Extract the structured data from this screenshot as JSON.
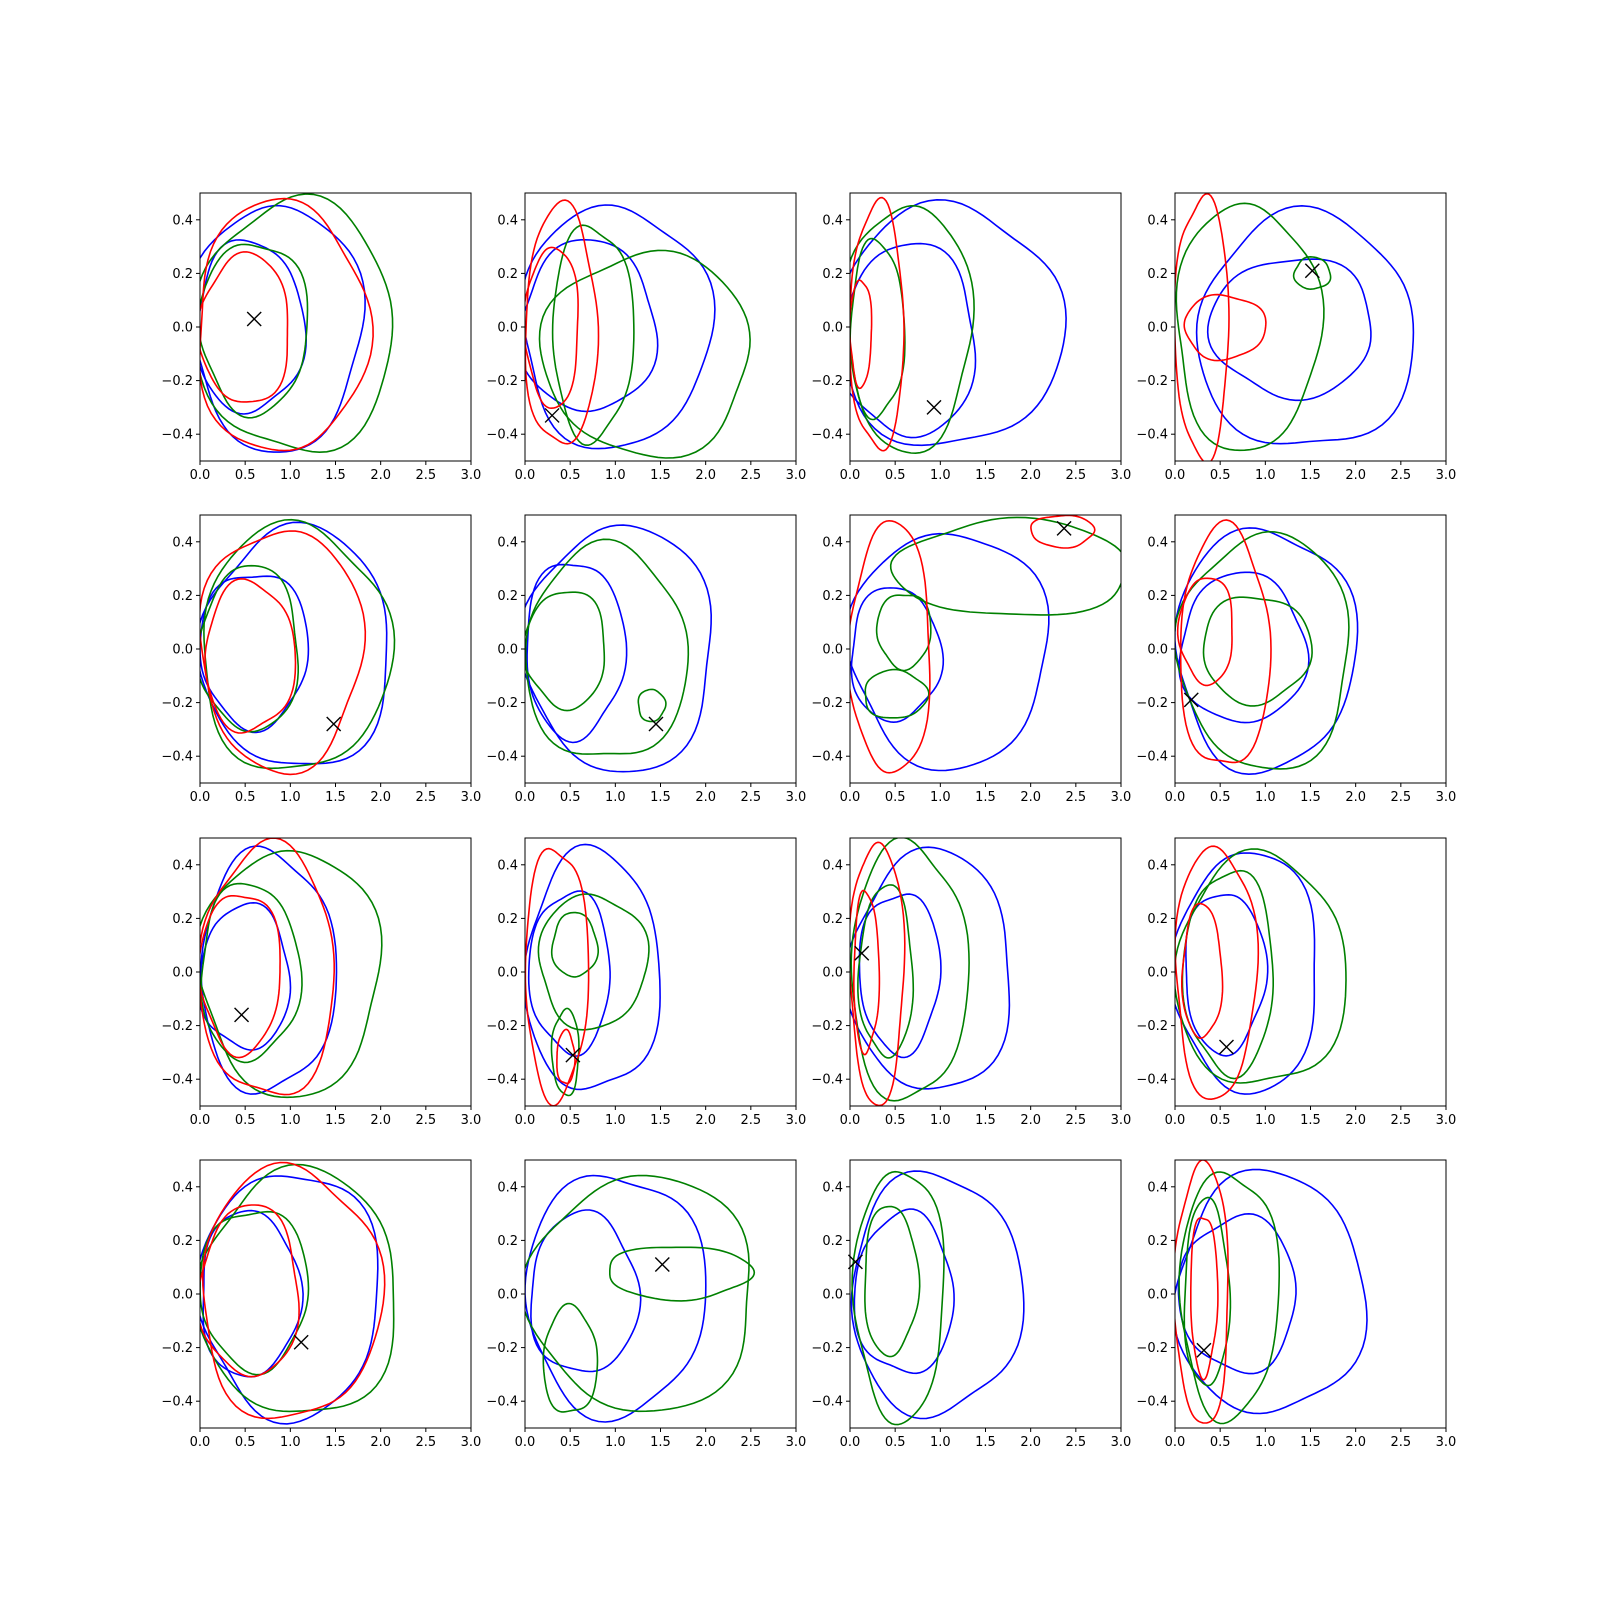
{
  "chart_data": {
    "type": "contour",
    "grid": false,
    "layout": "4x4 small multiples",
    "xlim": [
      0,
      3
    ],
    "ylim": [
      -0.5,
      0.5
    ],
    "xticks": [
      0.0,
      0.5,
      1.0,
      1.5,
      2.0,
      2.5,
      3.0
    ],
    "xtick_labels": [
      "0.0",
      "0.5",
      "1.0",
      "1.5",
      "2.0",
      "2.5",
      "3.0"
    ],
    "yticks": [
      -0.4,
      -0.2,
      0.0,
      0.2,
      0.4
    ],
    "ytick_labels": [
      "−0.4",
      "−0.2",
      "0.0",
      "0.2",
      "0.4"
    ],
    "colors": {
      "blue": "#0000ff",
      "green": "#008000",
      "red": "#ff0000",
      "marker": "#000000"
    },
    "panels": [
      {
        "marker": [
          0.6,
          0.03
        ],
        "contours": [
          {
            "color": "blue",
            "cx": 0.85,
            "cy": 0.0,
            "rx": 0.95,
            "ry": 0.46
          },
          {
            "color": "blue",
            "cx": 0.55,
            "cy": 0.0,
            "rx": 0.6,
            "ry": 0.32
          },
          {
            "color": "green",
            "cx": 1.05,
            "cy": 0.0,
            "rx": 1.1,
            "ry": 0.47
          },
          {
            "color": "green",
            "cx": 0.6,
            "cy": 0.0,
            "rx": 0.6,
            "ry": 0.32
          },
          {
            "color": "red",
            "cx": 0.9,
            "cy": 0.0,
            "rx": 0.95,
            "ry": 0.47
          },
          {
            "color": "red",
            "cx": 0.5,
            "cy": -0.01,
            "rx": 0.5,
            "ry": 0.28
          }
        ]
      },
      {
        "marker": [
          0.3,
          -0.33
        ],
        "contours": [
          {
            "color": "blue",
            "cx": 1.0,
            "cy": 0.0,
            "rx": 1.05,
            "ry": 0.45
          },
          {
            "color": "blue",
            "cx": 0.7,
            "cy": 0.0,
            "rx": 0.75,
            "ry": 0.32
          },
          {
            "color": "green",
            "cx": 1.35,
            "cy": -0.1,
            "rx": 1.15,
            "ry": 0.38
          },
          {
            "color": "green",
            "cx": 0.75,
            "cy": -0.02,
            "rx": 0.45,
            "ry": 0.4
          },
          {
            "color": "red",
            "cx": 0.4,
            "cy": 0.0,
            "rx": 0.4,
            "ry": 0.45
          },
          {
            "color": "red",
            "cx": 0.3,
            "cy": 0.0,
            "rx": 0.3,
            "ry": 0.3
          }
        ]
      },
      {
        "marker": [
          0.93,
          -0.3
        ],
        "contours": [
          {
            "color": "blue",
            "cx": 1.1,
            "cy": 0.0,
            "rx": 1.25,
            "ry": 0.45
          },
          {
            "color": "blue",
            "cx": 0.65,
            "cy": -0.05,
            "rx": 0.75,
            "ry": 0.36
          },
          {
            "color": "green",
            "cx": 0.65,
            "cy": 0.0,
            "rx": 0.7,
            "ry": 0.46
          },
          {
            "color": "green",
            "cx": 0.3,
            "cy": -0.01,
            "rx": 0.3,
            "ry": 0.33
          },
          {
            "color": "red",
            "cx": 0.3,
            "cy": 0.0,
            "rx": 0.3,
            "ry": 0.46
          },
          {
            "color": "red",
            "cx": 0.12,
            "cy": -0.02,
            "rx": 0.12,
            "ry": 0.2
          }
        ]
      },
      {
        "marker": [
          1.52,
          0.21
        ],
        "contours": [
          {
            "color": "blue",
            "cx": 1.45,
            "cy": -0.02,
            "rx": 1.2,
            "ry": 0.44
          },
          {
            "color": "blue",
            "cx": 1.3,
            "cy": 0.0,
            "rx": 0.9,
            "ry": 0.26
          },
          {
            "color": "green",
            "cx": 0.8,
            "cy": 0.0,
            "rx": 0.8,
            "ry": 0.46
          },
          {
            "color": "green",
            "cx": 1.52,
            "cy": 0.2,
            "rx": 0.2,
            "ry": 0.06
          },
          {
            "color": "red",
            "cx": 0.3,
            "cy": 0.0,
            "rx": 0.3,
            "ry": 0.49
          },
          {
            "color": "red",
            "cx": 0.55,
            "cy": 0.0,
            "rx": 0.45,
            "ry": 0.12
          }
        ]
      },
      {
        "marker": [
          1.48,
          -0.28
        ],
        "contours": [
          {
            "color": "blue",
            "cx": 1.07,
            "cy": 0.0,
            "rx": 1.05,
            "ry": 0.45
          },
          {
            "color": "blue",
            "cx": 0.6,
            "cy": 0.0,
            "rx": 0.6,
            "ry": 0.29
          },
          {
            "color": "green",
            "cx": 1.05,
            "cy": 0.0,
            "rx": 1.05,
            "ry": 0.46
          },
          {
            "color": "green",
            "cx": 0.55,
            "cy": 0.0,
            "rx": 0.55,
            "ry": 0.31
          },
          {
            "color": "red",
            "cx": 0.9,
            "cy": 0.0,
            "rx": 0.9,
            "ry": 0.45
          },
          {
            "color": "red",
            "cx": 0.55,
            "cy": -0.03,
            "rx": 0.5,
            "ry": 0.28
          }
        ]
      },
      {
        "marker": [
          1.45,
          -0.28
        ],
        "contours": [
          {
            "color": "blue",
            "cx": 1.05,
            "cy": 0.0,
            "rx": 1.05,
            "ry": 0.46
          },
          {
            "color": "blue",
            "cx": 0.55,
            "cy": 0.0,
            "rx": 0.55,
            "ry": 0.33
          },
          {
            "color": "green",
            "cx": 0.9,
            "cy": -0.02,
            "rx": 0.9,
            "ry": 0.4
          },
          {
            "color": "green",
            "cx": 0.45,
            "cy": 0.0,
            "rx": 0.45,
            "ry": 0.22
          },
          {
            "color": "green",
            "cx": 1.4,
            "cy": -0.21,
            "rx": 0.15,
            "ry": 0.06
          }
        ]
      },
      {
        "marker": [
          2.37,
          0.45
        ],
        "contours": [
          {
            "color": "blue",
            "cx": 1.1,
            "cy": 0.0,
            "rx": 1.1,
            "ry": 0.44
          },
          {
            "color": "blue",
            "cx": 0.5,
            "cy": -0.02,
            "rx": 0.5,
            "ry": 0.25
          },
          {
            "color": "green",
            "cx": 1.8,
            "cy": 0.3,
            "rx": 1.3,
            "ry": 0.18
          },
          {
            "color": "green",
            "cx": 0.6,
            "cy": 0.07,
            "rx": 0.3,
            "ry": 0.14
          },
          {
            "color": "green",
            "cx": 0.5,
            "cy": -0.17,
            "rx": 0.35,
            "ry": 0.09
          },
          {
            "color": "red",
            "cx": 0.45,
            "cy": 0.0,
            "rx": 0.45,
            "ry": 0.47
          },
          {
            "color": "red",
            "cx": 2.35,
            "cy": 0.44,
            "rx": 0.35,
            "ry": 0.06
          }
        ]
      },
      {
        "marker": [
          0.18,
          -0.19
        ],
        "contours": [
          {
            "color": "blue",
            "cx": 1.0,
            "cy": 0.0,
            "rx": 1.0,
            "ry": 0.45
          },
          {
            "color": "blue",
            "cx": 0.75,
            "cy": 0.0,
            "rx": 0.7,
            "ry": 0.28
          },
          {
            "color": "green",
            "cx": 1.0,
            "cy": -0.01,
            "rx": 0.95,
            "ry": 0.44
          },
          {
            "color": "green",
            "cx": 0.9,
            "cy": 0.0,
            "rx": 0.6,
            "ry": 0.2
          },
          {
            "color": "red",
            "cx": 0.55,
            "cy": 0.0,
            "rx": 0.5,
            "ry": 0.45
          },
          {
            "color": "red",
            "cx": 0.35,
            "cy": 0.07,
            "rx": 0.3,
            "ry": 0.2
          }
        ]
      },
      {
        "marker": [
          0.46,
          -0.16
        ],
        "contours": [
          {
            "color": "blue",
            "cx": 0.75,
            "cy": 0.0,
            "rx": 0.75,
            "ry": 0.45
          },
          {
            "color": "blue",
            "cx": 0.5,
            "cy": -0.02,
            "rx": 0.5,
            "ry": 0.27
          },
          {
            "color": "green",
            "cx": 1.0,
            "cy": 0.0,
            "rx": 1.0,
            "ry": 0.46
          },
          {
            "color": "green",
            "cx": 0.55,
            "cy": 0.0,
            "rx": 0.55,
            "ry": 0.33
          },
          {
            "color": "red",
            "cx": 0.75,
            "cy": 0.0,
            "rx": 0.75,
            "ry": 0.47
          },
          {
            "color": "red",
            "cx": 0.45,
            "cy": 0.0,
            "rx": 0.45,
            "ry": 0.3
          }
        ]
      },
      {
        "marker": [
          0.53,
          -0.31
        ],
        "contours": [
          {
            "color": "blue",
            "cx": 0.75,
            "cy": 0.0,
            "rx": 0.75,
            "ry": 0.45
          },
          {
            "color": "blue",
            "cx": 0.5,
            "cy": 0.0,
            "rx": 0.45,
            "ry": 0.3
          },
          {
            "color": "green",
            "cx": 0.75,
            "cy": 0.04,
            "rx": 0.6,
            "ry": 0.25
          },
          {
            "color": "green",
            "cx": 0.55,
            "cy": 0.1,
            "rx": 0.25,
            "ry": 0.12
          },
          {
            "color": "green",
            "cx": 0.45,
            "cy": -0.3,
            "rx": 0.15,
            "ry": 0.16
          },
          {
            "color": "red",
            "cx": 0.35,
            "cy": 0.0,
            "rx": 0.35,
            "ry": 0.47
          },
          {
            "color": "red",
            "cx": 0.45,
            "cy": -0.32,
            "rx": 0.1,
            "ry": 0.1
          }
        ]
      },
      {
        "marker": [
          0.13,
          0.07
        ],
        "contours": [
          {
            "color": "blue",
            "cx": 0.9,
            "cy": 0.0,
            "rx": 0.9,
            "ry": 0.45
          },
          {
            "color": "blue",
            "cx": 0.55,
            "cy": 0.0,
            "rx": 0.45,
            "ry": 0.3
          },
          {
            "color": "green",
            "cx": 0.65,
            "cy": 0.0,
            "rx": 0.65,
            "ry": 0.48
          },
          {
            "color": "green",
            "cx": 0.4,
            "cy": 0.0,
            "rx": 0.3,
            "ry": 0.32
          },
          {
            "color": "red",
            "cx": 0.3,
            "cy": 0.0,
            "rx": 0.3,
            "ry": 0.49
          },
          {
            "color": "red",
            "cx": 0.18,
            "cy": 0.0,
            "rx": 0.14,
            "ry": 0.3
          }
        ]
      },
      {
        "marker": [
          0.57,
          -0.28
        ],
        "contours": [
          {
            "color": "blue",
            "cx": 0.8,
            "cy": 0.0,
            "rx": 0.8,
            "ry": 0.45
          },
          {
            "color": "blue",
            "cx": 0.55,
            "cy": 0.0,
            "rx": 0.45,
            "ry": 0.3
          },
          {
            "color": "green",
            "cx": 0.95,
            "cy": 0.0,
            "rx": 0.95,
            "ry": 0.43
          },
          {
            "color": "green",
            "cx": 0.6,
            "cy": 0.0,
            "rx": 0.5,
            "ry": 0.38
          },
          {
            "color": "red",
            "cx": 0.45,
            "cy": 0.0,
            "rx": 0.45,
            "ry": 0.47
          },
          {
            "color": "red",
            "cx": 0.3,
            "cy": 0.0,
            "rx": 0.22,
            "ry": 0.25
          }
        ]
      },
      {
        "marker": [
          1.12,
          -0.18
        ],
        "contours": [
          {
            "color": "blue",
            "cx": 1.0,
            "cy": 0.0,
            "rx": 1.0,
            "ry": 0.46
          },
          {
            "color": "blue",
            "cx": 0.55,
            "cy": 0.0,
            "rx": 0.55,
            "ry": 0.31
          },
          {
            "color": "green",
            "cx": 1.1,
            "cy": 0.0,
            "rx": 1.1,
            "ry": 0.46
          },
          {
            "color": "green",
            "cx": 0.6,
            "cy": 0.02,
            "rx": 0.6,
            "ry": 0.3
          },
          {
            "color": "red",
            "cx": 1.0,
            "cy": 0.0,
            "rx": 1.0,
            "ry": 0.47
          },
          {
            "color": "red",
            "cx": 0.55,
            "cy": 0.01,
            "rx": 0.55,
            "ry": 0.32
          }
        ]
      },
      {
        "marker": [
          1.52,
          0.11
        ],
        "contours": [
          {
            "color": "blue",
            "cx": 1.0,
            "cy": 0.0,
            "rx": 1.0,
            "ry": 0.45
          },
          {
            "color": "blue",
            "cx": 0.65,
            "cy": 0.0,
            "rx": 0.6,
            "ry": 0.3
          },
          {
            "color": "green",
            "cx": 1.3,
            "cy": 0.0,
            "rx": 1.25,
            "ry": 0.44
          },
          {
            "color": "green",
            "cx": 1.7,
            "cy": 0.08,
            "rx": 0.8,
            "ry": 0.1
          },
          {
            "color": "green",
            "cx": 0.5,
            "cy": -0.25,
            "rx": 0.3,
            "ry": 0.2
          }
        ]
      },
      {
        "marker": [
          0.06,
          0.12
        ],
        "contours": [
          {
            "color": "blue",
            "cx": 0.95,
            "cy": 0.0,
            "rx": 0.95,
            "ry": 0.45
          },
          {
            "color": "blue",
            "cx": 0.6,
            "cy": 0.0,
            "rx": 0.55,
            "ry": 0.3
          },
          {
            "color": "green",
            "cx": 0.55,
            "cy": 0.0,
            "rx": 0.5,
            "ry": 0.47
          },
          {
            "color": "green",
            "cx": 0.45,
            "cy": 0.05,
            "rx": 0.3,
            "ry": 0.28
          }
        ]
      },
      {
        "marker": [
          0.32,
          -0.21
        ],
        "contours": [
          {
            "color": "blue",
            "cx": 1.05,
            "cy": 0.0,
            "rx": 1.05,
            "ry": 0.45
          },
          {
            "color": "blue",
            "cx": 0.7,
            "cy": 0.0,
            "rx": 0.65,
            "ry": 0.29
          },
          {
            "color": "green",
            "cx": 0.6,
            "cy": 0.0,
            "rx": 0.55,
            "ry": 0.46
          },
          {
            "color": "green",
            "cx": 0.35,
            "cy": 0.0,
            "rx": 0.25,
            "ry": 0.35
          },
          {
            "color": "red",
            "cx": 0.3,
            "cy": 0.0,
            "rx": 0.3,
            "ry": 0.49
          },
          {
            "color": "red",
            "cx": 0.32,
            "cy": 0.0,
            "rx": 0.15,
            "ry": 0.3
          }
        ]
      }
    ]
  }
}
